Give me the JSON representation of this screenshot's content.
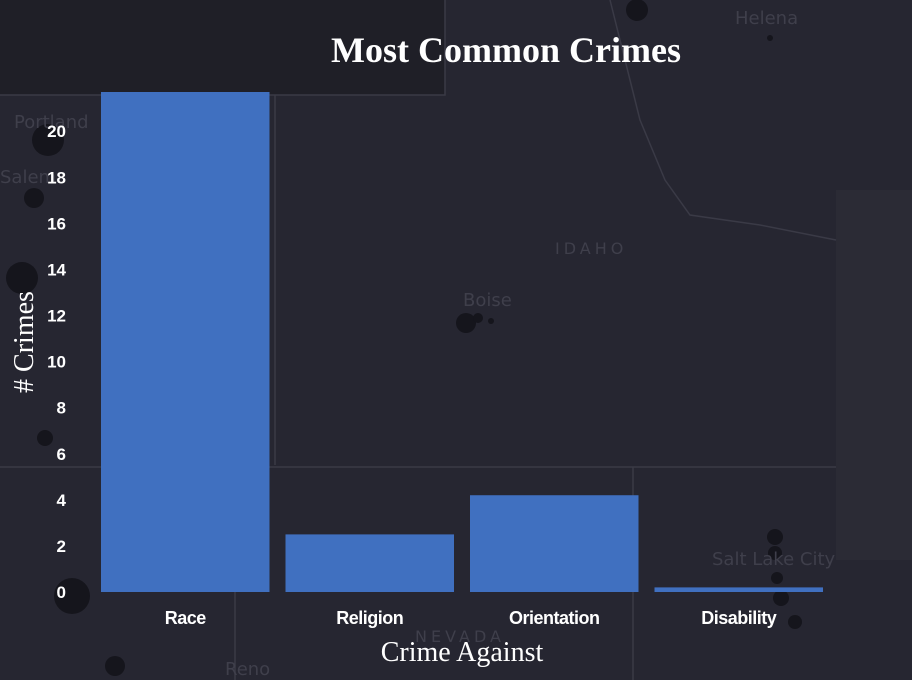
{
  "background_map": {
    "labels": {
      "helena": "Helena",
      "portland": "Portland",
      "salem": "Salem",
      "idaho": "IDAHO",
      "boise": "Boise",
      "salt_lake_city": "Salt Lake City",
      "nevada": "NEVADA",
      "reno": "Reno"
    }
  },
  "chart_data": {
    "type": "bar",
    "title": "Most Common Crimes",
    "xlabel": "Crime Against",
    "ylabel": "# Crimes",
    "categories": [
      "Race",
      "Religion",
      "Orientation",
      "Disability"
    ],
    "values": [
      21.7,
      2.5,
      4.2,
      0.2
    ],
    "ylim": [
      0,
      21.7
    ],
    "yticks": [
      0,
      2,
      4,
      6,
      8,
      10,
      12,
      14,
      16,
      18,
      20
    ],
    "bar_color": "#4070c0",
    "grid": false
  }
}
